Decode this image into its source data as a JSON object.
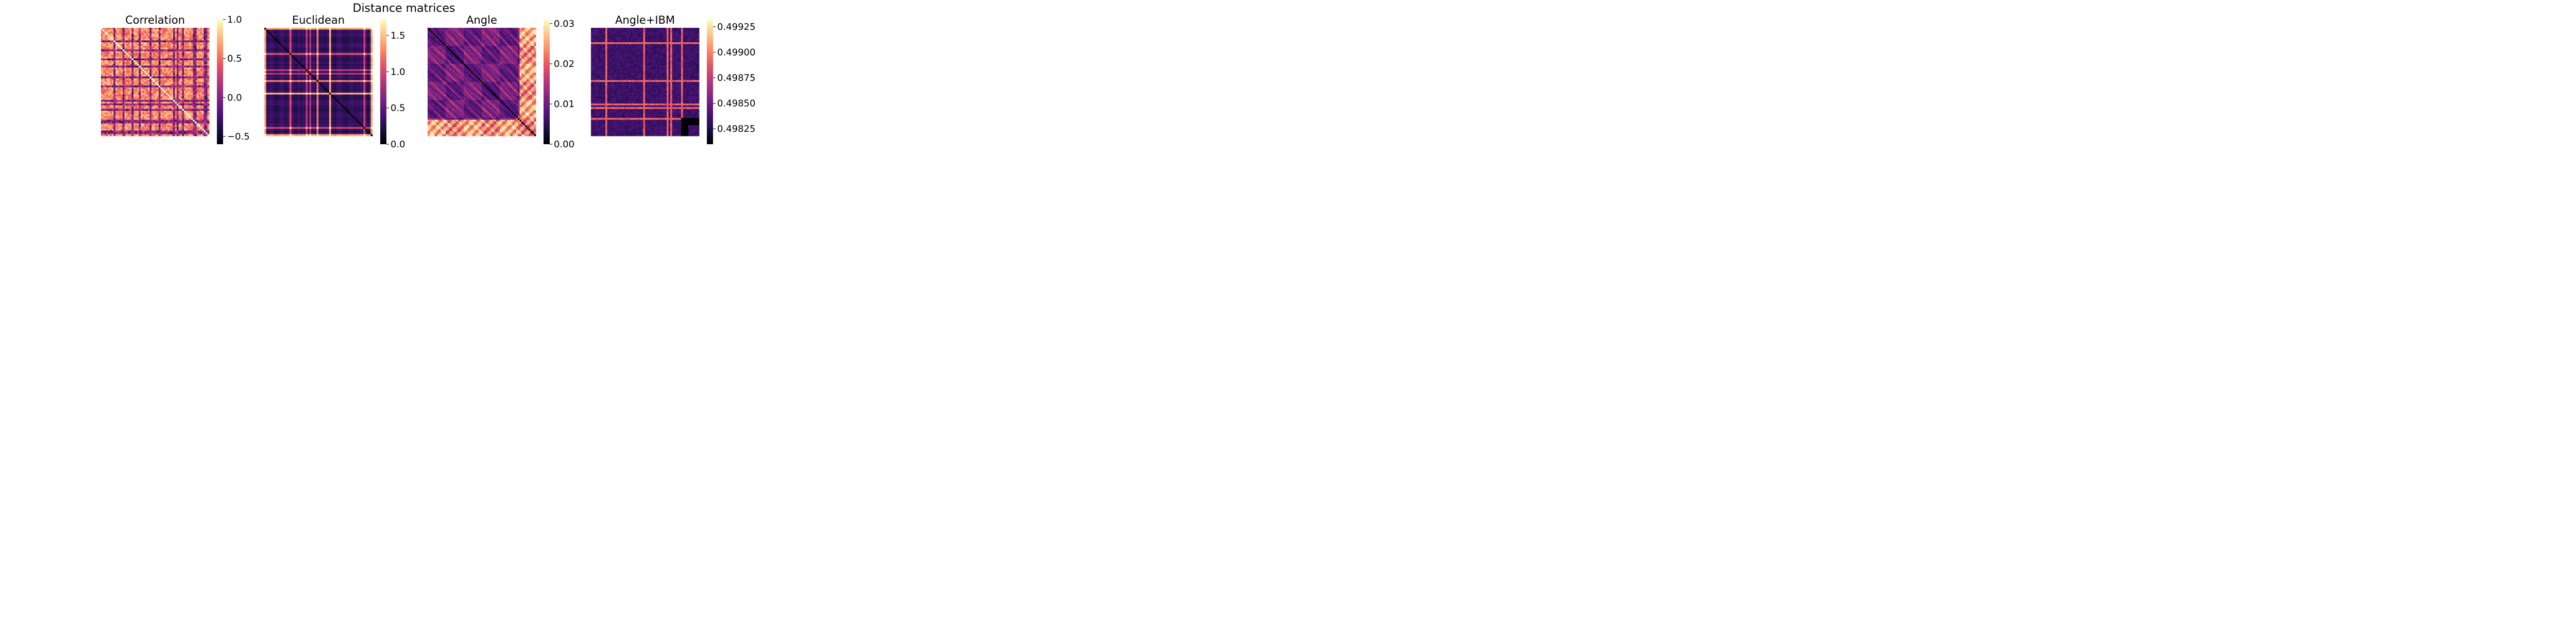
{
  "figure": {
    "title": "Distance matrices"
  },
  "chart_data": [
    {
      "type": "heatmap",
      "title": "Correlation",
      "colormap": "magma",
      "xlabel": "",
      "ylabel": "",
      "matrix_size": 60,
      "pattern": "correlation",
      "diagonal_value": 1.0,
      "value_range": [
        -0.6,
        1.0
      ],
      "colorbar_ticks": [
        -0.5,
        0.0,
        0.5,
        1.0
      ],
      "colorbar_tick_labels": [
        "−0.5",
        "0.0",
        "0.5",
        "1.0"
      ],
      "grid": false,
      "axes_visible": false
    },
    {
      "type": "heatmap",
      "title": "Euclidean",
      "colormap": "magma",
      "xlabel": "",
      "ylabel": "",
      "matrix_size": 60,
      "pattern": "euclidean",
      "diagonal_value": 0.0,
      "value_range": [
        0.0,
        1.72
      ],
      "colorbar_ticks": [
        0.0,
        0.5,
        1.0,
        1.5
      ],
      "colorbar_tick_labels": [
        "0.0",
        "0.5",
        "1.0",
        "1.5"
      ],
      "grid": false,
      "axes_visible": false
    },
    {
      "type": "heatmap",
      "title": "Angle",
      "colormap": "magma",
      "xlabel": "",
      "ylabel": "",
      "matrix_size": 60,
      "pattern": "angle",
      "diagonal_value": 0.0,
      "value_range": [
        0.0,
        0.031
      ],
      "colorbar_ticks": [
        0.0,
        0.01,
        0.02,
        0.03
      ],
      "colorbar_tick_labels": [
        "0.00",
        "0.01",
        "0.02",
        "0.03"
      ],
      "grid": false,
      "axes_visible": false
    },
    {
      "type": "heatmap",
      "title": "Angle+IBM",
      "colormap": "magma",
      "xlabel": "",
      "ylabel": "",
      "matrix_size": 60,
      "pattern": "angle_ibm",
      "value_range": [
        0.4981,
        0.49932
      ],
      "colorbar_ticks": [
        0.49825,
        0.4985,
        0.49875,
        0.499,
        0.49925
      ],
      "colorbar_tick_labels": [
        "0.49825",
        "0.49850",
        "0.49875",
        "0.49900",
        "0.49925"
      ],
      "grid": false,
      "axes_visible": false
    }
  ]
}
